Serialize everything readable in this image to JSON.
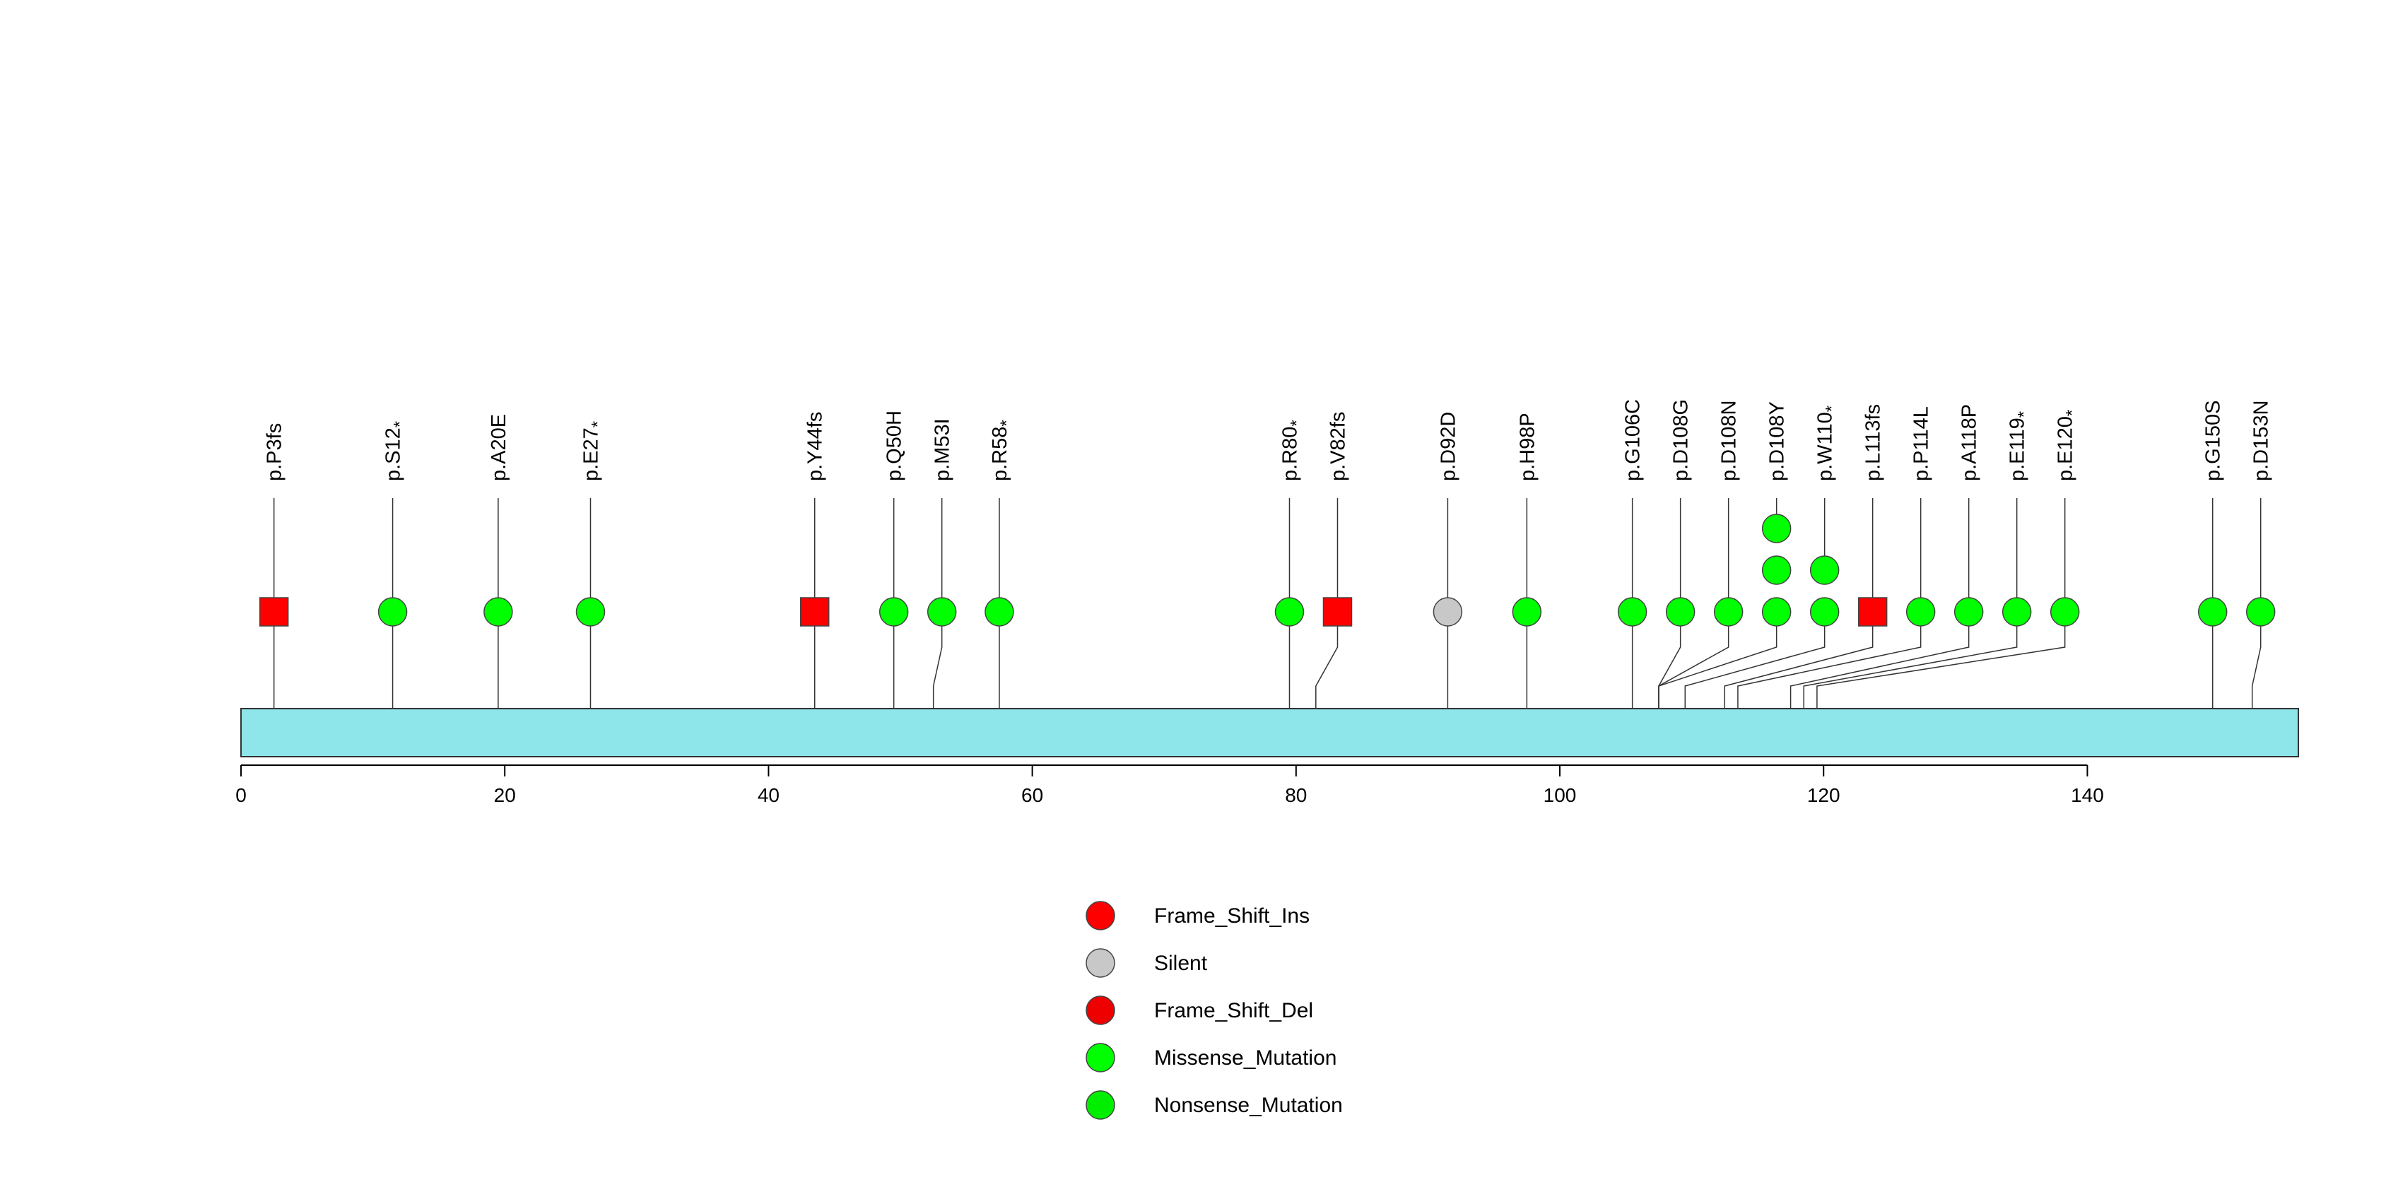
{
  "chart_data": {
    "type": "lollipop",
    "title": "",
    "xlabel": "",
    "ylabel": "",
    "xlim": [
      0,
      156
    ],
    "x_ticks": [
      0,
      20,
      40,
      60,
      80,
      100,
      120,
      140
    ],
    "mutations": [
      {
        "label": "p.P3fs",
        "position": 2,
        "type": "Frame_Shift_Del",
        "count": 1
      },
      {
        "label": "p.S12*",
        "position": 11,
        "type": "Nonsense_Mutation",
        "count": 1
      },
      {
        "label": "p.A20E",
        "position": 19,
        "type": "Missense_Mutation",
        "count": 1
      },
      {
        "label": "p.E27*",
        "position": 26,
        "type": "Nonsense_Mutation",
        "count": 1
      },
      {
        "label": "p.Y44fs",
        "position": 43,
        "type": "Frame_Shift_Del",
        "count": 1
      },
      {
        "label": "p.Q50H",
        "position": 49,
        "type": "Missense_Mutation",
        "count": 1
      },
      {
        "label": "p.M53I",
        "position": 52,
        "type": "Missense_Mutation",
        "count": 1
      },
      {
        "label": "p.R58*",
        "position": 57,
        "type": "Nonsense_Mutation",
        "count": 1
      },
      {
        "label": "p.R80*",
        "position": 79,
        "type": "Nonsense_Mutation",
        "count": 1
      },
      {
        "label": "p.V82fs",
        "position": 81,
        "type": "Frame_Shift_Del",
        "count": 1
      },
      {
        "label": "p.D92D",
        "position": 91,
        "type": "Silent",
        "count": 1
      },
      {
        "label": "p.H98P",
        "position": 97,
        "type": "Missense_Mutation",
        "count": 1
      },
      {
        "label": "p.G106C",
        "position": 105,
        "type": "Missense_Mutation",
        "count": 1
      },
      {
        "label": "p.D108G",
        "position": 107,
        "type": "Missense_Mutation",
        "count": 1
      },
      {
        "label": "p.D108N",
        "position": 107,
        "type": "Missense_Mutation",
        "count": 1
      },
      {
        "label": "p.D108Y",
        "position": 107,
        "type": "Missense_Mutation",
        "count": 3
      },
      {
        "label": "p.W110*",
        "position": 109,
        "type": "Nonsense_Mutation",
        "count": 2
      },
      {
        "label": "p.L113fs",
        "position": 112,
        "type": "Frame_Shift_Del",
        "count": 1
      },
      {
        "label": "p.P114L",
        "position": 113,
        "type": "Missense_Mutation",
        "count": 1
      },
      {
        "label": "p.A118P",
        "position": 117,
        "type": "Missense_Mutation",
        "count": 1
      },
      {
        "label": "p.E119*",
        "position": 118,
        "type": "Nonsense_Mutation",
        "count": 1
      },
      {
        "label": "p.E120*",
        "position": 119,
        "type": "Nonsense_Mutation",
        "count": 1
      },
      {
        "label": "p.G150S",
        "position": 149,
        "type": "Missense_Mutation",
        "count": 1
      },
      {
        "label": "p.D153N",
        "position": 152,
        "type": "Missense_Mutation",
        "count": 1
      }
    ],
    "legend": {
      "placement": "bottom-center",
      "entries": [
        {
          "label": "Frame_Shift_Ins",
          "color": "#ff0000"
        },
        {
          "label": "Silent",
          "color": "#c8c8c8"
        },
        {
          "label": "Frame_Shift_Del",
          "color": "#ee0000"
        },
        {
          "label": "Missense_Mutation",
          "color": "#00ff00"
        },
        {
          "label": "Nonsense_Mutation",
          "color": "#00ee00"
        }
      ]
    },
    "colors": {
      "protein_bar": "#8ee5ea",
      "Frame_Shift_Del": "#ff0000",
      "Frame_Shift_Ins": "#ff0000",
      "Silent": "#c8c8c8",
      "Missense_Mutation": "#00ff00",
      "Nonsense_Mutation": "#00ff00"
    }
  }
}
